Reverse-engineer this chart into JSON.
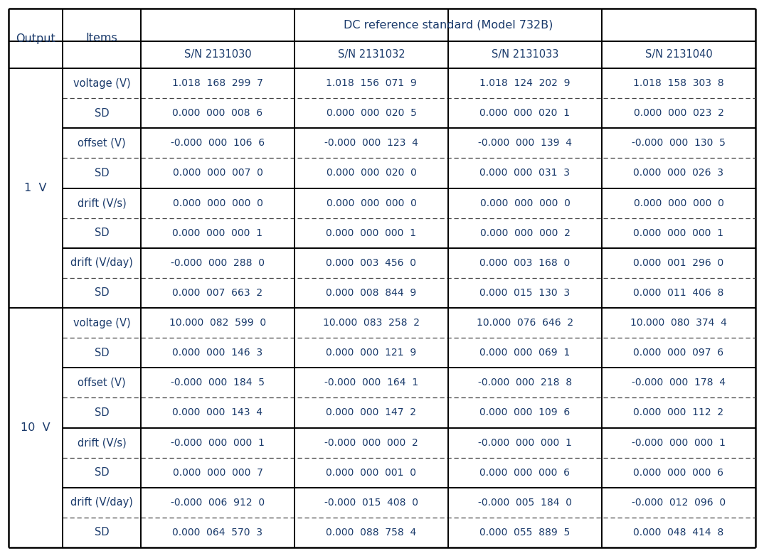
{
  "title": "DC reference standard (Model 732B)",
  "col_headers": [
    "S/N 2131030",
    "S/N 2131032",
    "S/N 2131033",
    "S/N 2131040"
  ],
  "output_labels": [
    "1  V",
    "10  V"
  ],
  "row_labels": [
    "voltage (V)",
    "SD",
    "offset (V)",
    "SD",
    "drift (V/s)",
    "SD",
    "drift (V/day)",
    "SD",
    "voltage (V)",
    "SD",
    "offset (V)",
    "SD",
    "drift (V/s)",
    "SD",
    "drift (V/day)",
    "SD"
  ],
  "data": [
    [
      "1.018  168  299  7",
      "1.018  156  071  9",
      "1.018  124  202  9",
      "1.018  158  303  8"
    ],
    [
      "0.000  000  008  6",
      "0.000  000  020  5",
      "0.000  000  020  1",
      "0.000  000  023  2"
    ],
    [
      "-0.000  000  106  6",
      "-0.000  000  123  4",
      "-0.000  000  139  4",
      "-0.000  000  130  5"
    ],
    [
      "0.000  000  007  0",
      "0.000  000  020  0",
      "0.000  000  031  3",
      "0.000  000  026  3"
    ],
    [
      "0.000  000  000  0",
      "0.000  000  000  0",
      "0.000  000  000  0",
      "0.000  000  000  0"
    ],
    [
      "0.000  000  000  1",
      "0.000  000  000  1",
      "0.000  000  000  2",
      "0.000  000  000  1"
    ],
    [
      "-0.000  000  288  0",
      "0.000  003  456  0",
      "0.000  003  168  0",
      "0.000  001  296  0"
    ],
    [
      "0.000  007  663  2",
      "0.000  008  844  9",
      "0.000  015  130  3",
      "0.000  011  406  8"
    ],
    [
      "10.000  082  599  0",
      "10.000  083  258  2",
      "10.000  076  646  2",
      "10.000  080  374  4"
    ],
    [
      "0.000  000  146  3",
      "0.000  000  121  9",
      "0.000  000  069  1",
      "0.000  000  097  6"
    ],
    [
      "-0.000  000  184  5",
      "-0.000  000  164  1",
      "-0.000  000  218  8",
      "-0.000  000  178  4"
    ],
    [
      "0.000  000  143  4",
      "0.000  000  147  2",
      "0.000  000  109  6",
      "0.000  000  112  2"
    ],
    [
      "-0.000  000  000  1",
      "-0.000  000  000  2",
      "-0.000  000  000  1",
      "-0.000  000  000  1"
    ],
    [
      "0.000  000  000  7",
      "0.000  000  001  0",
      "0.000  000  000  6",
      "0.000  000  000  6"
    ],
    [
      "-0.000  006  912  0",
      "-0.000  015  408  0",
      "-0.000  005  184  0",
      "-0.000  012  096  0"
    ],
    [
      "0.000  064  570  3",
      "0.000  088  758  4",
      "0.000  055  889  5",
      "0.000  048  414  8"
    ]
  ],
  "bg_color": "#ffffff",
  "text_color": "#1a3a6b",
  "border_color": "#000000",
  "dashed_color": "#444444",
  "font_size": 10.0,
  "header_font_size": 11.5,
  "label_font_size": 10.5
}
